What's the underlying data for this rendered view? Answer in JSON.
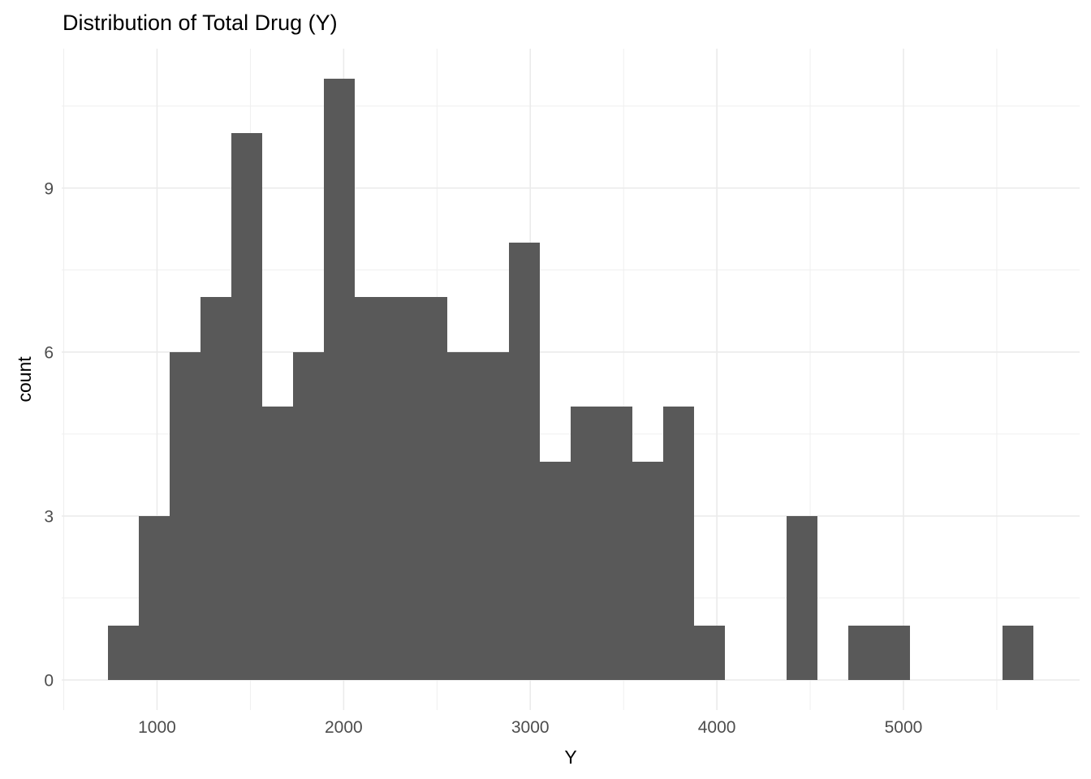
{
  "page": {
    "background": "#FFFFFF"
  },
  "chart_data": {
    "type": "bar",
    "subtype": "histogram",
    "title": "Distribution of Total Drug (Y)",
    "xlabel": "Y",
    "ylabel": "count",
    "bin_start": 737,
    "bin_width": 165.3,
    "counts": [
      1,
      3,
      6,
      7,
      10,
      5,
      6,
      11,
      7,
      7,
      7,
      6,
      6,
      8,
      4,
      5,
      5,
      4,
      5,
      1,
      0,
      0,
      3,
      0,
      1,
      1,
      0,
      0,
      0,
      1
    ],
    "total_n": 120,
    "x_ticks": [
      1000,
      2000,
      3000,
      4000,
      5000
    ],
    "x_minor_ticks": [
      500,
      1500,
      2500,
      3500,
      4500,
      5500
    ],
    "y_ticks": [
      0,
      3,
      6,
      9
    ],
    "y_minor_ticks": [
      1.5,
      4.5,
      7.5,
      10.5
    ],
    "xlim": [
      489,
      5944
    ],
    "ylim": [
      -0.55,
      11.55
    ],
    "grid": true,
    "legend": "none",
    "colors": {
      "bar_fill": "#595959",
      "grid_major": "#EBEBEB",
      "grid_minor": "#EFEFEF",
      "tick_label": "#4D4D4D",
      "axis_title": "#000000",
      "title": "#000000",
      "panel_background": "#FFFFFF"
    }
  }
}
